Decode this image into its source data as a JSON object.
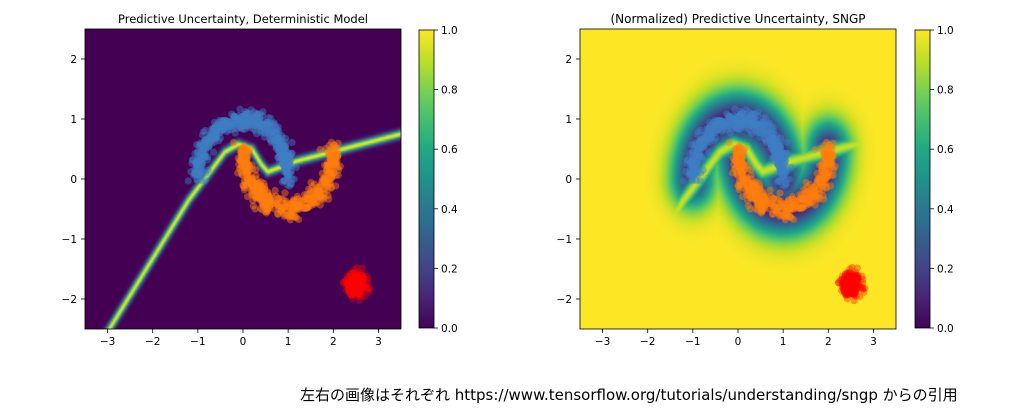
{
  "caption": "左右の画像はそれぞれ https://www.tensorflow.org/tutorials/understanding/sngp からの引用",
  "colormap": "viridis",
  "colors": {
    "blue_class": "#3f7fc4",
    "orange_class": "#ff7f0e",
    "red_ood": "#ff0000",
    "viridis_low": "#440154",
    "viridis_mid": "#21918c",
    "viridis_high": "#fde725"
  },
  "chart_data": [
    {
      "type": "heatmap",
      "title": "Predictive Uncertainty, Deterministic Model",
      "xlabel": "",
      "ylabel": "",
      "xlim": [
        -3.5,
        3.5
      ],
      "ylim": [
        -2.5,
        2.5
      ],
      "xticks": [
        -3,
        -2,
        -1,
        0,
        1,
        2,
        3
      ],
      "yticks": [
        -2,
        -1,
        0,
        1,
        2
      ],
      "colorbar": {
        "range": [
          0.0,
          1.0
        ],
        "ticks": [
          "0.0",
          "0.2",
          "0.4",
          "0.6",
          "0.8",
          "1.0"
        ]
      },
      "description_of_field": "uncertainty near 0 everywhere except a thin high-uncertainty line along the decision boundary",
      "series": [
        {
          "class": "moon-1",
          "color": "#3f7fc4",
          "center": [
            0,
            0
          ],
          "radius": 1.0,
          "arc": "upper",
          "points": 500
        },
        {
          "class": "moon-2",
          "color": "#ff7f0e",
          "center": [
            1,
            0.5
          ],
          "radius": 1.0,
          "arc": "lower",
          "points": 500
        },
        {
          "class": "ood",
          "color": "#ff0000",
          "center": [
            2.5,
            -1.75
          ],
          "spread": 0.15,
          "points": 250
        }
      ]
    },
    {
      "type": "heatmap",
      "title": "(Normalized) Predictive Uncertainty, SNGP",
      "xlabel": "",
      "ylabel": "",
      "xlim": [
        -3.5,
        3.5
      ],
      "ylim": [
        -2.5,
        2.5
      ],
      "xticks": [
        -3,
        -2,
        -1,
        0,
        1,
        2,
        3
      ],
      "yticks": [
        -2,
        -1,
        0,
        1,
        2
      ],
      "colorbar": {
        "range": [
          0.0,
          1.0
        ],
        "ticks": [
          "0.0",
          "0.2",
          "0.4",
          "0.6",
          "0.8",
          "1.0"
        ]
      },
      "description_of_field": "uncertainty low near training data, high far from data and along the boundary",
      "series": [
        {
          "class": "moon-1",
          "color": "#3f7fc4",
          "center": [
            0,
            0
          ],
          "radius": 1.0,
          "arc": "upper",
          "points": 500
        },
        {
          "class": "moon-2",
          "color": "#ff7f0e",
          "center": [
            1,
            0.5
          ],
          "radius": 1.0,
          "arc": "lower",
          "points": 500
        },
        {
          "class": "ood",
          "color": "#ff0000",
          "center": [
            2.5,
            -1.75
          ],
          "spread": 0.15,
          "points": 250
        }
      ]
    }
  ]
}
